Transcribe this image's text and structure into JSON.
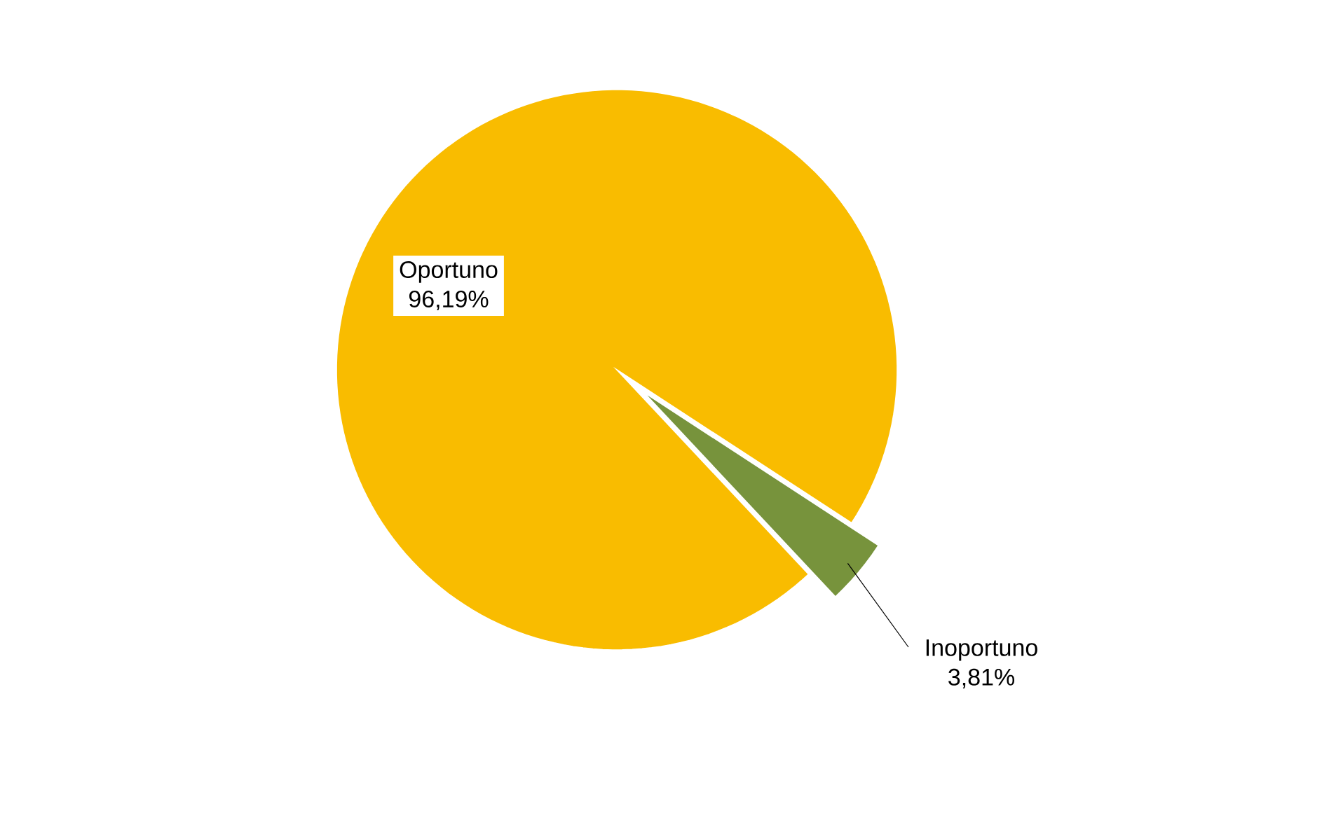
{
  "chart_data": {
    "type": "pie",
    "categories": [
      "Oportuno",
      "Inoportuno"
    ],
    "values": [
      96.19,
      3.81
    ],
    "colors": [
      "#f9bc00",
      "#77933c"
    ],
    "value_labels": [
      "96,19%",
      "3,81%"
    ]
  }
}
